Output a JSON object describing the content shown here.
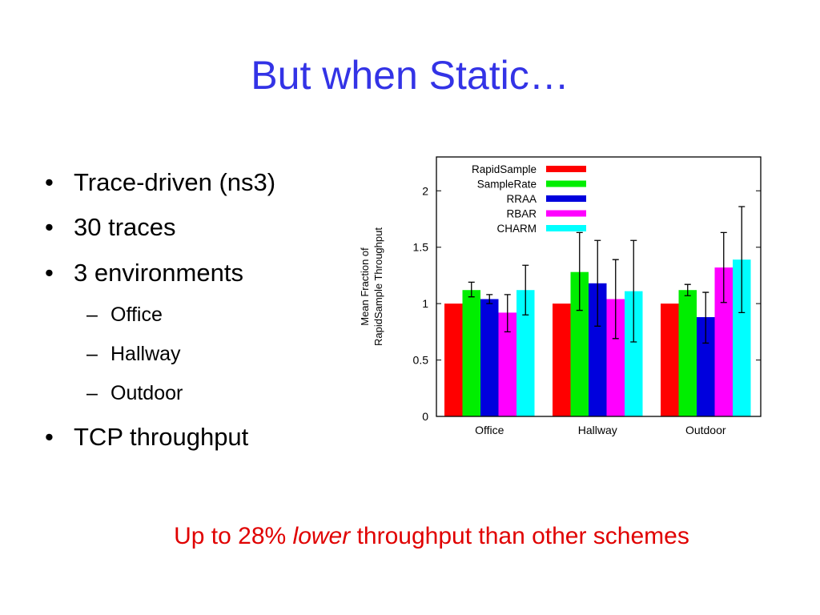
{
  "slide": {
    "title": "But when Static…",
    "bullets": [
      {
        "text": "Trace-driven (ns3)"
      },
      {
        "text": "30 traces"
      },
      {
        "text": "3 environments",
        "sub": [
          "Office",
          "Hallway",
          "Outdoor"
        ]
      },
      {
        "text": "TCP throughput"
      }
    ],
    "note": {
      "prefix": "Up to 28% ",
      "emphasis": "lower",
      "suffix": " throughput than other schemes"
    }
  },
  "chart_data": {
    "type": "bar",
    "ylabel_lines": [
      "Mean Fraction of",
      "RapidSample Throughput"
    ],
    "ylim": [
      0,
      2.3
    ],
    "yticks": [
      0,
      0.5,
      1,
      1.5,
      2
    ],
    "ytick_labels": [
      "0",
      "0.5",
      "1",
      "1.5",
      "2"
    ],
    "grid": false,
    "legend_position": "top-left",
    "categories": [
      "Office",
      "Hallway",
      "Outdoor"
    ],
    "series": [
      {
        "name": "RapidSample",
        "color": "#ff0000",
        "values": [
          1.0,
          1.0,
          1.0
        ],
        "err_low": [
          null,
          null,
          null
        ],
        "err_high": [
          null,
          null,
          null
        ]
      },
      {
        "name": "SampleRate",
        "color": "#00ee00",
        "values": [
          1.12,
          1.28,
          1.12
        ],
        "err_low": [
          1.06,
          0.94,
          1.07
        ],
        "err_high": [
          1.19,
          1.63,
          1.17
        ]
      },
      {
        "name": "RRAA",
        "color": "#0000dd",
        "values": [
          1.04,
          1.18,
          0.88
        ],
        "err_low": [
          1.0,
          0.8,
          0.65
        ],
        "err_high": [
          1.08,
          1.56,
          1.1
        ]
      },
      {
        "name": "RBAR",
        "color": "#ff00ff",
        "values": [
          0.92,
          1.04,
          1.32
        ],
        "err_low": [
          0.75,
          0.69,
          1.01
        ],
        "err_high": [
          1.08,
          1.39,
          1.63
        ]
      },
      {
        "name": "CHARM",
        "color": "#00ffff",
        "values": [
          1.12,
          1.11,
          1.39
        ],
        "err_low": [
          0.9,
          0.66,
          0.92
        ],
        "err_high": [
          1.34,
          1.56,
          1.86
        ]
      }
    ]
  }
}
